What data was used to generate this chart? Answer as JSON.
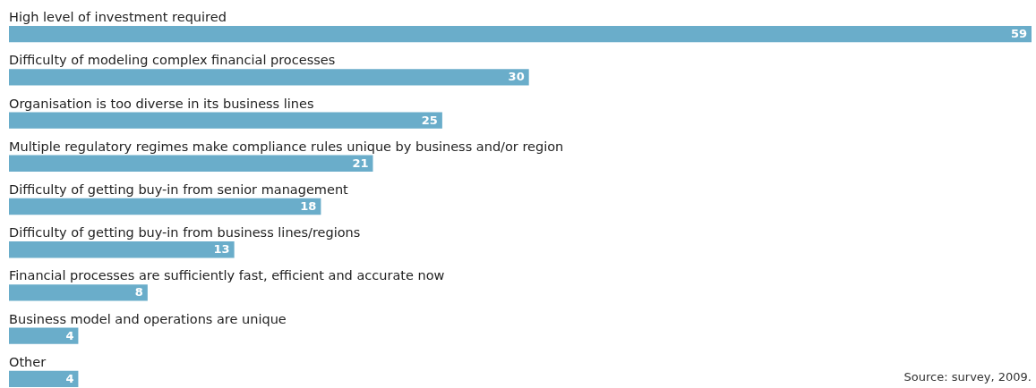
{
  "chart_data": {
    "type": "bar",
    "orientation": "horizontal",
    "categories": [
      "High level of investment required",
      "Difficulty of modeling complex financial processes",
      "Organisation is too diverse in its business lines",
      "Multiple regulatory regimes make compliance rules unique by business and/or region",
      "Difficulty of getting buy-in from senior management",
      "Difficulty of getting buy-in from business lines/regions",
      "Financial processes are sufficiently fast, efficient and accurate now",
      "Business model and operations are unique",
      "Other"
    ],
    "values": [
      59,
      30,
      25,
      21,
      18,
      13,
      8,
      4,
      4
    ],
    "color": "#6aadca",
    "data_labels": true,
    "annotations": [
      "Source: survey, 2009."
    ]
  }
}
